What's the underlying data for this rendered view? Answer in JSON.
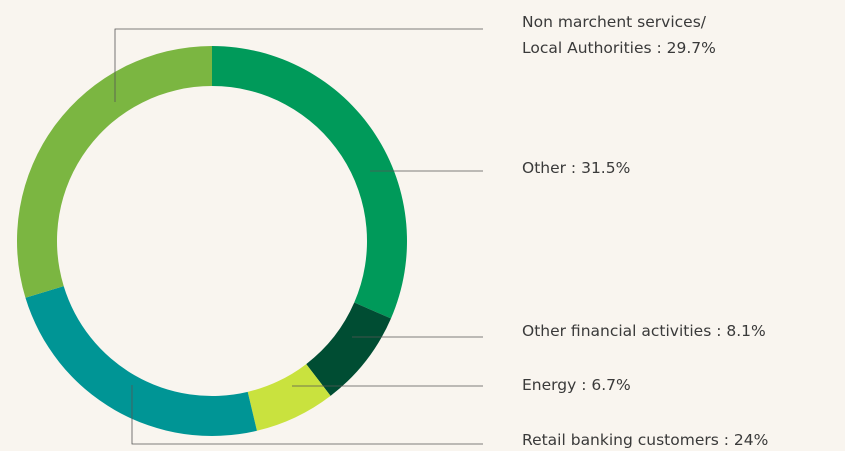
{
  "chart_data": {
    "type": "donut",
    "values": [
      31.5,
      8.1,
      6.7,
      24,
      29.7
    ],
    "value_labels": [
      "Other : 31.5%",
      "Other financial activities : 8.1%",
      "Energy : 6.7%",
      "Retail banking customers : 24%",
      "Non marchent services/\nLocal Authorities : 29.7%"
    ],
    "colors": [
      "#009a5a",
      "#004d33",
      "#c9e23e",
      "#009595",
      "#7bb641"
    ]
  }
}
